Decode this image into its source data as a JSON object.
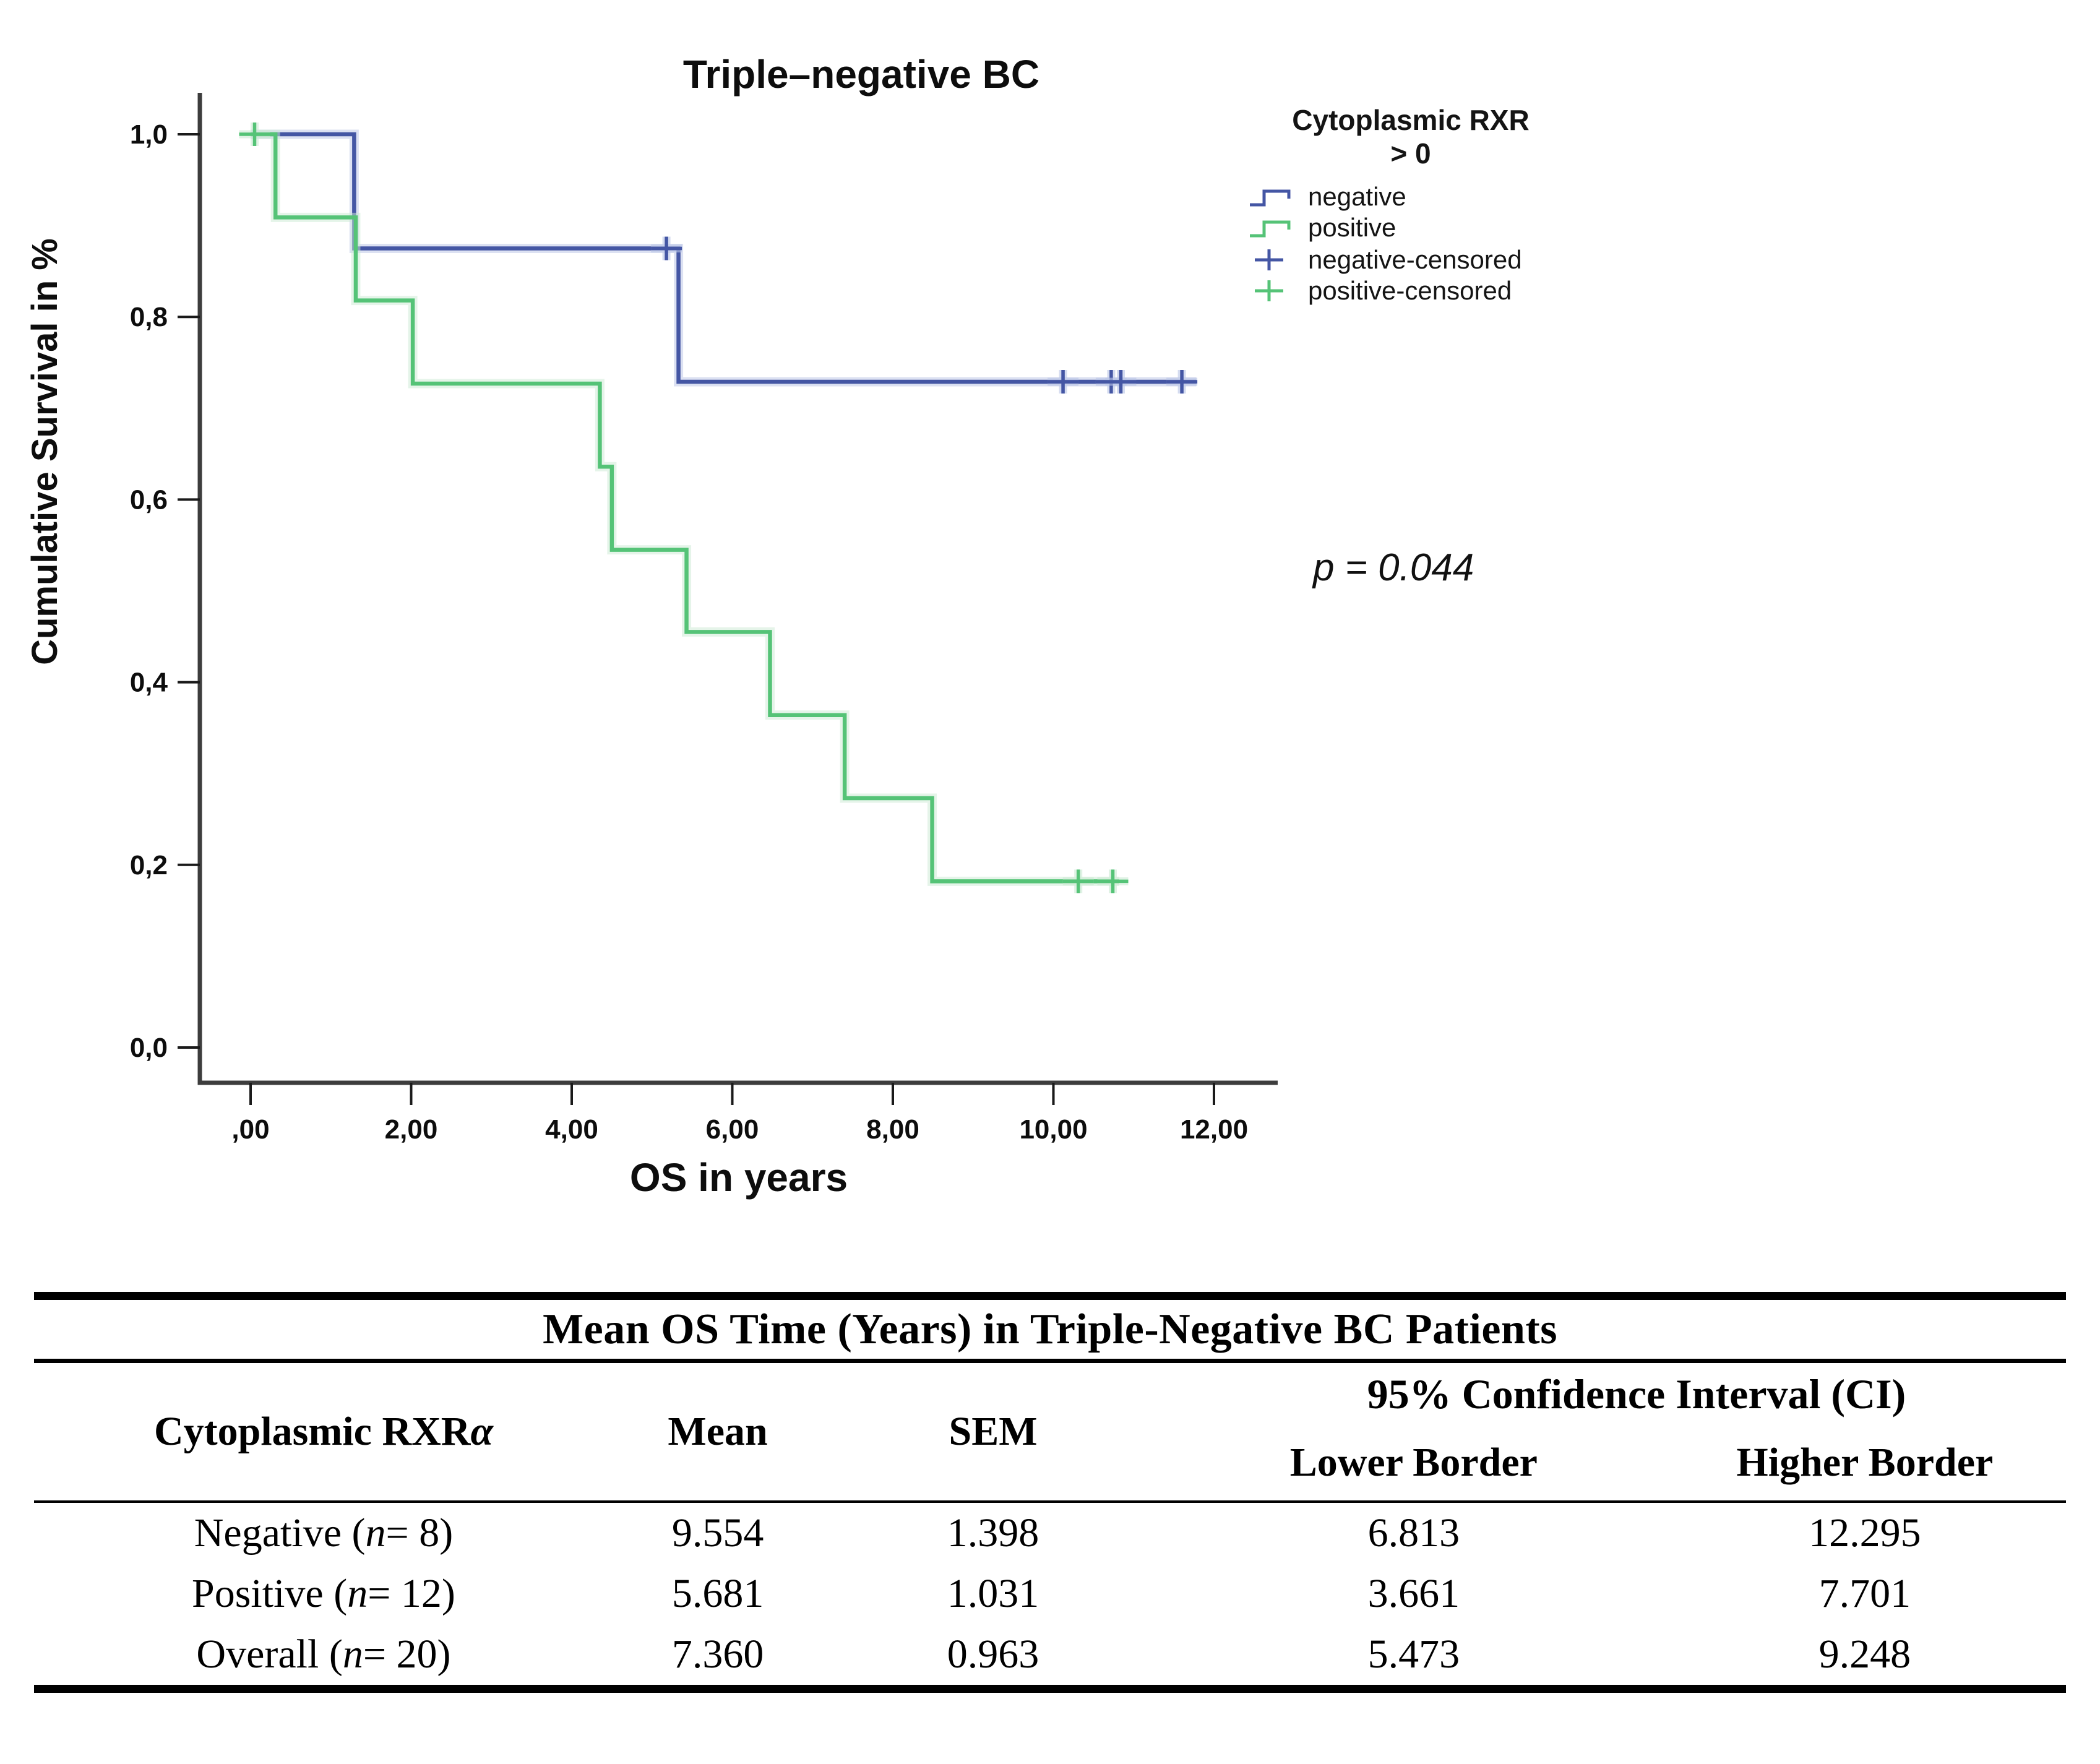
{
  "chart_data": {
    "type": "line",
    "subtype": "kaplan-meier-step-survival",
    "title": "Triple–negative BC",
    "xlabel": "OS in years",
    "ylabel": "Cumulative Survival in %",
    "xlim": [
      0,
      12.8
    ],
    "ylim": [
      0,
      1.05
    ],
    "grid": false,
    "legend_position": "right",
    "x_ticks": [
      {
        "v": 0,
        "label": ",00"
      },
      {
        "v": 2,
        "label": "2,00"
      },
      {
        "v": 4,
        "label": "4,00"
      },
      {
        "v": 6,
        "label": "6,00"
      },
      {
        "v": 8,
        "label": "8,00"
      },
      {
        "v": 10,
        "label": "10,00"
      },
      {
        "v": 12,
        "label": "12,00"
      }
    ],
    "y_ticks": [
      {
        "v": 1.0,
        "label": "1,0"
      },
      {
        "v": 0.8,
        "label": "0,8"
      },
      {
        "v": 0.6,
        "label": "0,6"
      },
      {
        "v": 0.4,
        "label": "0,4"
      },
      {
        "v": 0.2,
        "label": "0,2"
      },
      {
        "v": 0.0,
        "label": "0,0"
      }
    ],
    "annotation": {
      "text": "p = 0.044"
    },
    "legend": {
      "title_line1": "Cytoplasmic RXR",
      "title_line2": "> 0",
      "items": [
        {
          "label": "negative",
          "glyph": "step",
          "series": "negative"
        },
        {
          "label": "positive",
          "glyph": "step",
          "series": "positive"
        },
        {
          "label": "negative-censored",
          "glyph": "plus",
          "series": "negative"
        },
        {
          "label": "positive-censored",
          "glyph": "plus",
          "series": "positive"
        }
      ]
    },
    "series": [
      {
        "name": "negative",
        "color": "#4456a4",
        "halo_color": "#b9c4e6",
        "points": [
          [
            0,
            1.0
          ],
          [
            1.29,
            1.0
          ],
          [
            1.29,
            0.875
          ],
          [
            5.33,
            0.875
          ],
          [
            5.33,
            0.729
          ],
          [
            11.78,
            0.729
          ]
        ],
        "censored": [
          [
            5.18,
            0.875
          ],
          [
            10.12,
            0.729
          ],
          [
            10.72,
            0.729
          ],
          [
            10.84,
            0.729
          ],
          [
            11.6,
            0.729
          ]
        ]
      },
      {
        "name": "positive",
        "color": "#55c377",
        "halo_color": "#cbe9d3",
        "points": [
          [
            0,
            1.0
          ],
          [
            0.31,
            1.0
          ],
          [
            0.31,
            0.909
          ],
          [
            1.31,
            0.909
          ],
          [
            1.31,
            0.818
          ],
          [
            2.02,
            0.818
          ],
          [
            2.02,
            0.727
          ],
          [
            4.35,
            0.727
          ],
          [
            4.35,
            0.636
          ],
          [
            4.5,
            0.636
          ],
          [
            4.5,
            0.545
          ],
          [
            5.43,
            0.545
          ],
          [
            5.43,
            0.455
          ],
          [
            6.47,
            0.455
          ],
          [
            6.47,
            0.364
          ],
          [
            7.4,
            0.364
          ],
          [
            7.4,
            0.273
          ],
          [
            8.49,
            0.273
          ],
          [
            8.49,
            0.182
          ],
          [
            10.82,
            0.182
          ]
        ],
        "censored": [
          [
            0.05,
            1.0
          ],
          [
            10.31,
            0.182
          ],
          [
            10.74,
            0.182
          ]
        ]
      }
    ]
  },
  "table": {
    "title": "Mean OS Time (Years) in Triple-Negative BC Patients",
    "header": {
      "col1": "Cytoplasmic RXR",
      "col1_alpha": "α",
      "col2": "Mean",
      "col3": "SEM",
      "ci": "95% Confidence Interval (CI)",
      "ci_lower": "Lower Border",
      "ci_higher": "Higher Border"
    },
    "rows": [
      {
        "label_pre": "Negative (",
        "label_n": "n",
        "label_post": " = 8)",
        "mean": "9.554",
        "sem": "1.398",
        "lower": "6.813",
        "higher": "12.295"
      },
      {
        "label_pre": "Positive (",
        "label_n": "n",
        "label_post": " = 12)",
        "mean": "5.681",
        "sem": "1.031",
        "lower": "3.661",
        "higher": "7.701"
      },
      {
        "label_pre": "Overall (",
        "label_n": "n",
        "label_post": " = 20)",
        "mean": "7.360",
        "sem": "0.963",
        "lower": "5.473",
        "higher": "9.248"
      }
    ]
  }
}
